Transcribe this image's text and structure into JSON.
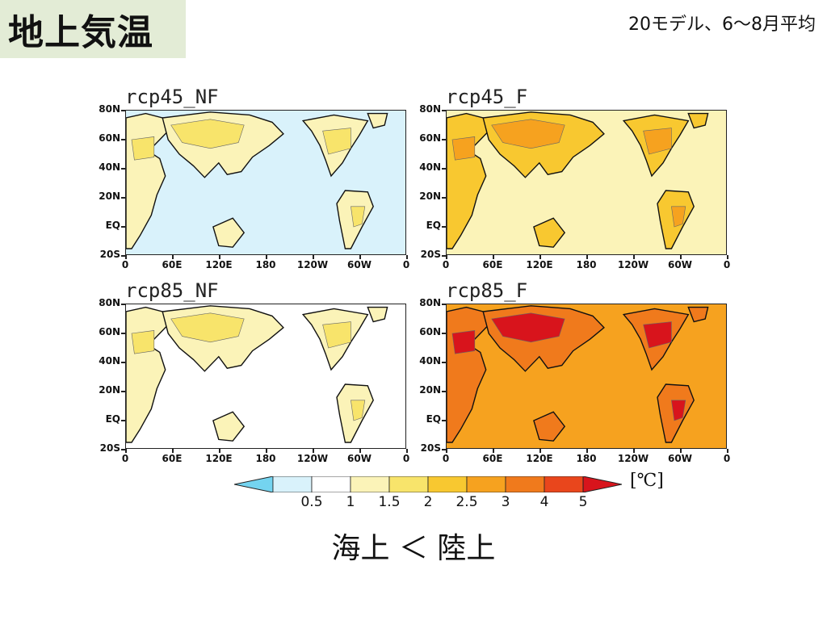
{
  "slide": {
    "title": "地上気温",
    "subtitle": "20モデル、6〜8月平均",
    "conclusion": "海上 ＜ 陸上"
  },
  "chart_data": [
    {
      "type": "heatmap",
      "title": "rcp45_NF",
      "x_ticks": [
        "0",
        "60E",
        "120E",
        "180",
        "120W",
        "60W",
        "0"
      ],
      "y_ticks": [
        "80N",
        "60N",
        "40N",
        "20N",
        "EQ",
        "20S"
      ],
      "xlim": [
        "0",
        "360"
      ],
      "ylim": [
        "20S",
        "80N"
      ],
      "land_level": "1.5–2",
      "ocean_level": "0.5–1",
      "hotspot_level": "2–2.5"
    },
    {
      "type": "heatmap",
      "title": "rcp45_F",
      "x_ticks": [
        "0",
        "60E",
        "120E",
        "180",
        "120W",
        "60W",
        "0"
      ],
      "y_ticks": [
        "80N",
        "60N",
        "40N",
        "20N",
        "EQ",
        "20S"
      ],
      "xlim": [
        "0",
        "360"
      ],
      "ylim": [
        "20S",
        "80N"
      ],
      "land_level": "2.5–3",
      "ocean_level": "1.5–2",
      "hotspot_level": "3–4"
    },
    {
      "type": "heatmap",
      "title": "rcp85_NF",
      "x_ticks": [
        "0",
        "60E",
        "120E",
        "180",
        "120W",
        "60W",
        "0"
      ],
      "y_ticks": [
        "80N",
        "60N",
        "40N",
        "20N",
        "EQ",
        "20S"
      ],
      "xlim": [
        "0",
        "360"
      ],
      "ylim": [
        "20S",
        "80N"
      ],
      "land_level": "1.5–2",
      "ocean_level": "1–1.5",
      "hotspot_level": "2–2.5"
    },
    {
      "type": "heatmap",
      "title": "rcp85_F",
      "x_ticks": [
        "0",
        "60E",
        "120E",
        "180",
        "120W",
        "60W",
        "0"
      ],
      "y_ticks": [
        "80N",
        "60N",
        "40N",
        "20N",
        "EQ",
        "20S"
      ],
      "xlim": [
        "0",
        "360"
      ],
      "ylim": [
        "20S",
        "80N"
      ],
      "land_level": "4–5",
      "ocean_level": "3–4",
      "hotspot_level": ">5"
    }
  ],
  "colorbar": {
    "labels": [
      "0.5",
      "1",
      "1.5",
      "2",
      "2.5",
      "3",
      "4",
      "5"
    ],
    "colors": [
      "#74d4f0",
      "#d9f2fb",
      "#ffffff",
      "#fbf3b8",
      "#f8e46b",
      "#f8c830",
      "#f6a21f",
      "#f07a1c",
      "#e9461c",
      "#d8141c"
    ],
    "unit": "[℃]"
  }
}
